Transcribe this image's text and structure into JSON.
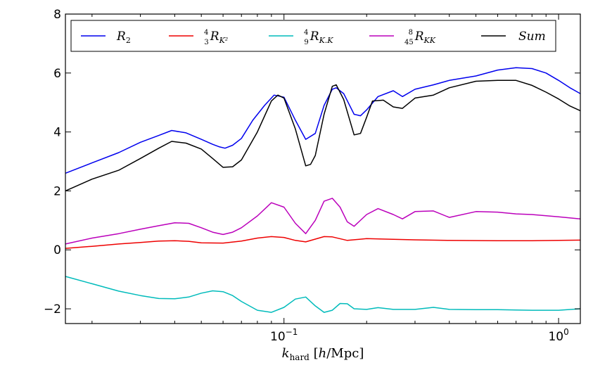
{
  "chart_data": {
    "type": "line",
    "title": "",
    "xlabel": "k_hard [h/Mpc]",
    "ylabel": "",
    "xscale": "log",
    "xlim": [
      0.016,
      1.2
    ],
    "ylim": [
      -2.5,
      8
    ],
    "x_ticks": [
      {
        "value": 0.1,
        "label": "10^-1"
      },
      {
        "value": 1.0,
        "label": "10^0"
      }
    ],
    "y_ticks": [
      {
        "value": -2,
        "label": "−2"
      },
      {
        "value": 0,
        "label": "0"
      },
      {
        "value": 2,
        "label": "2"
      },
      {
        "value": 4,
        "label": "4"
      },
      {
        "value": 6,
        "label": "6"
      },
      {
        "value": 8,
        "label": "8"
      }
    ],
    "legend_position": "top",
    "series": [
      {
        "name": "R_2",
        "color": "#0000ee",
        "points": [
          [
            0.016,
            2.6
          ],
          [
            0.02,
            2.95
          ],
          [
            0.025,
            3.3
          ],
          [
            0.03,
            3.65
          ],
          [
            0.035,
            3.88
          ],
          [
            0.039,
            4.05
          ],
          [
            0.044,
            3.97
          ],
          [
            0.05,
            3.75
          ],
          [
            0.055,
            3.58
          ],
          [
            0.058,
            3.5
          ],
          [
            0.061,
            3.45
          ],
          [
            0.065,
            3.55
          ],
          [
            0.07,
            3.78
          ],
          [
            0.077,
            4.4
          ],
          [
            0.085,
            4.9
          ],
          [
            0.092,
            5.25
          ],
          [
            0.1,
            5.18
          ],
          [
            0.11,
            4.4
          ],
          [
            0.12,
            3.75
          ],
          [
            0.13,
            3.95
          ],
          [
            0.14,
            4.9
          ],
          [
            0.15,
            5.45
          ],
          [
            0.155,
            5.5
          ],
          [
            0.165,
            5.3
          ],
          [
            0.18,
            4.6
          ],
          [
            0.19,
            4.55
          ],
          [
            0.2,
            4.75
          ],
          [
            0.22,
            5.2
          ],
          [
            0.25,
            5.4
          ],
          [
            0.27,
            5.2
          ],
          [
            0.3,
            5.45
          ],
          [
            0.35,
            5.6
          ],
          [
            0.4,
            5.75
          ],
          [
            0.5,
            5.9
          ],
          [
            0.6,
            6.1
          ],
          [
            0.7,
            6.18
          ],
          [
            0.8,
            6.15
          ],
          [
            0.9,
            6.0
          ],
          [
            1.0,
            5.75
          ],
          [
            1.1,
            5.5
          ],
          [
            1.2,
            5.3
          ]
        ]
      },
      {
        "name": "4/3 R_K^2",
        "color": "#ee0000",
        "points": [
          [
            0.016,
            0.05
          ],
          [
            0.02,
            0.12
          ],
          [
            0.025,
            0.2
          ],
          [
            0.03,
            0.25
          ],
          [
            0.035,
            0.3
          ],
          [
            0.04,
            0.31
          ],
          [
            0.045,
            0.29
          ],
          [
            0.05,
            0.24
          ],
          [
            0.06,
            0.23
          ],
          [
            0.07,
            0.3
          ],
          [
            0.08,
            0.4
          ],
          [
            0.09,
            0.45
          ],
          [
            0.1,
            0.42
          ],
          [
            0.11,
            0.32
          ],
          [
            0.12,
            0.27
          ],
          [
            0.14,
            0.45
          ],
          [
            0.15,
            0.44
          ],
          [
            0.17,
            0.32
          ],
          [
            0.2,
            0.38
          ],
          [
            0.25,
            0.36
          ],
          [
            0.3,
            0.34
          ],
          [
            0.4,
            0.32
          ],
          [
            0.6,
            0.31
          ],
          [
            0.8,
            0.31
          ],
          [
            1.0,
            0.32
          ],
          [
            1.2,
            0.33
          ]
        ]
      },
      {
        "name": "4/9 R_K.K",
        "color": "#00bbbb",
        "points": [
          [
            0.016,
            -0.9
          ],
          [
            0.02,
            -1.15
          ],
          [
            0.025,
            -1.4
          ],
          [
            0.03,
            -1.55
          ],
          [
            0.035,
            -1.65
          ],
          [
            0.04,
            -1.66
          ],
          [
            0.045,
            -1.6
          ],
          [
            0.05,
            -1.47
          ],
          [
            0.055,
            -1.39
          ],
          [
            0.06,
            -1.42
          ],
          [
            0.065,
            -1.55
          ],
          [
            0.07,
            -1.75
          ],
          [
            0.08,
            -2.05
          ],
          [
            0.09,
            -2.12
          ],
          [
            0.1,
            -1.95
          ],
          [
            0.11,
            -1.67
          ],
          [
            0.12,
            -1.6
          ],
          [
            0.13,
            -1.9
          ],
          [
            0.14,
            -2.12
          ],
          [
            0.15,
            -2.05
          ],
          [
            0.16,
            -1.82
          ],
          [
            0.17,
            -1.83
          ],
          [
            0.18,
            -2.0
          ],
          [
            0.2,
            -2.02
          ],
          [
            0.22,
            -1.96
          ],
          [
            0.25,
            -2.02
          ],
          [
            0.3,
            -2.02
          ],
          [
            0.35,
            -1.95
          ],
          [
            0.4,
            -2.02
          ],
          [
            0.5,
            -2.03
          ],
          [
            0.6,
            -2.03
          ],
          [
            0.7,
            -2.04
          ],
          [
            0.8,
            -2.05
          ],
          [
            1.0,
            -2.05
          ],
          [
            1.2,
            -2.0
          ]
        ]
      },
      {
        "name": "8/45 R_KK",
        "color": "#bb00bb",
        "points": [
          [
            0.016,
            0.2
          ],
          [
            0.02,
            0.4
          ],
          [
            0.025,
            0.55
          ],
          [
            0.03,
            0.7
          ],
          [
            0.035,
            0.82
          ],
          [
            0.04,
            0.92
          ],
          [
            0.045,
            0.9
          ],
          [
            0.05,
            0.75
          ],
          [
            0.055,
            0.6
          ],
          [
            0.06,
            0.52
          ],
          [
            0.065,
            0.6
          ],
          [
            0.07,
            0.75
          ],
          [
            0.08,
            1.15
          ],
          [
            0.09,
            1.6
          ],
          [
            0.1,
            1.45
          ],
          [
            0.11,
            0.9
          ],
          [
            0.12,
            0.55
          ],
          [
            0.13,
            1.0
          ],
          [
            0.14,
            1.65
          ],
          [
            0.15,
            1.75
          ],
          [
            0.16,
            1.45
          ],
          [
            0.17,
            0.95
          ],
          [
            0.18,
            0.8
          ],
          [
            0.2,
            1.2
          ],
          [
            0.22,
            1.4
          ],
          [
            0.25,
            1.2
          ],
          [
            0.27,
            1.05
          ],
          [
            0.3,
            1.3
          ],
          [
            0.35,
            1.32
          ],
          [
            0.4,
            1.1
          ],
          [
            0.5,
            1.3
          ],
          [
            0.6,
            1.28
          ],
          [
            0.7,
            1.22
          ],
          [
            0.8,
            1.2
          ],
          [
            1.0,
            1.12
          ],
          [
            1.2,
            1.05
          ]
        ]
      },
      {
        "name": "Sum",
        "color": "#000000",
        "points": [
          [
            0.016,
            2.0
          ],
          [
            0.02,
            2.4
          ],
          [
            0.025,
            2.7
          ],
          [
            0.03,
            3.1
          ],
          [
            0.035,
            3.45
          ],
          [
            0.039,
            3.68
          ],
          [
            0.044,
            3.62
          ],
          [
            0.05,
            3.42
          ],
          [
            0.055,
            3.1
          ],
          [
            0.06,
            2.8
          ],
          [
            0.065,
            2.82
          ],
          [
            0.07,
            3.05
          ],
          [
            0.08,
            4.0
          ],
          [
            0.09,
            5.05
          ],
          [
            0.095,
            5.25
          ],
          [
            0.1,
            5.15
          ],
          [
            0.11,
            4.1
          ],
          [
            0.12,
            2.85
          ],
          [
            0.125,
            2.9
          ],
          [
            0.13,
            3.2
          ],
          [
            0.14,
            4.6
          ],
          [
            0.15,
            5.55
          ],
          [
            0.155,
            5.6
          ],
          [
            0.165,
            5.1
          ],
          [
            0.18,
            3.9
          ],
          [
            0.19,
            3.95
          ],
          [
            0.2,
            4.5
          ],
          [
            0.21,
            5.05
          ],
          [
            0.23,
            5.08
          ],
          [
            0.25,
            4.85
          ],
          [
            0.27,
            4.8
          ],
          [
            0.3,
            5.15
          ],
          [
            0.35,
            5.25
          ],
          [
            0.4,
            5.5
          ],
          [
            0.5,
            5.72
          ],
          [
            0.6,
            5.75
          ],
          [
            0.7,
            5.75
          ],
          [
            0.8,
            5.58
          ],
          [
            0.9,
            5.35
          ],
          [
            1.0,
            5.12
          ],
          [
            1.1,
            4.88
          ],
          [
            1.2,
            4.72
          ]
        ]
      }
    ]
  }
}
